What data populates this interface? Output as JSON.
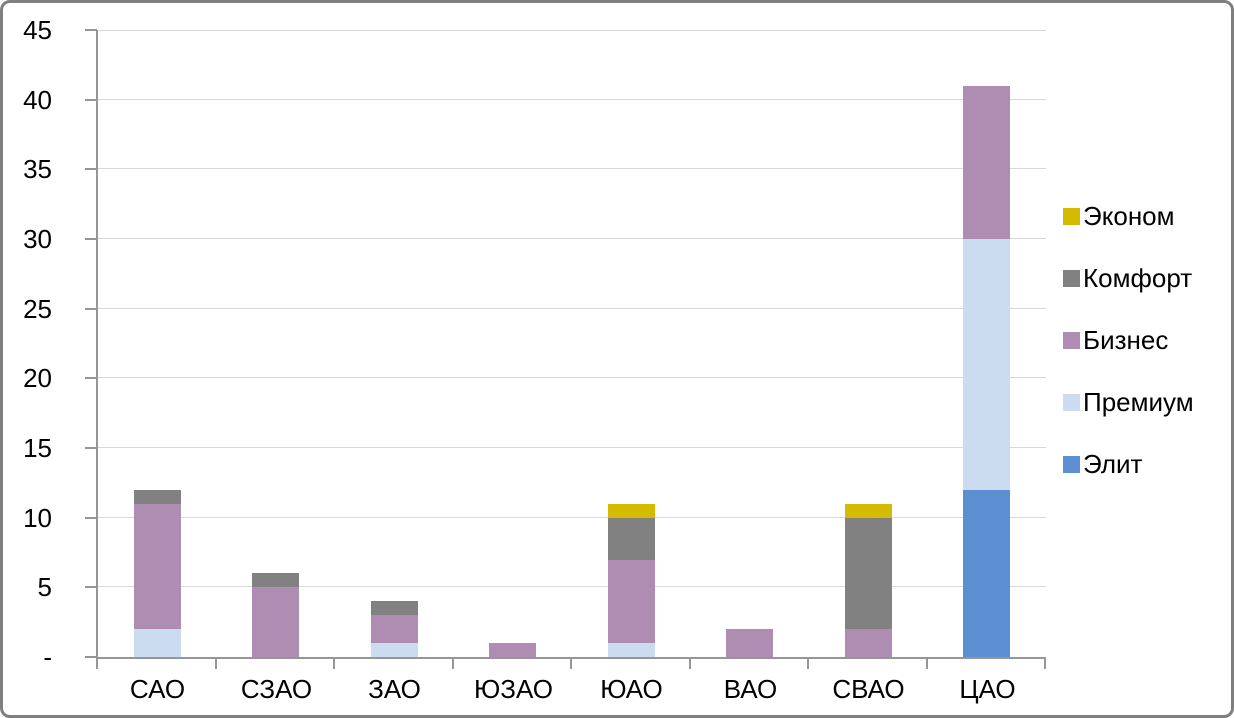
{
  "chart_data": {
    "type": "bar",
    "stacked": true,
    "title": "",
    "xlabel": "",
    "ylabel": "",
    "categories": [
      "САО",
      "СЗАО",
      "ЗАО",
      "ЮЗАО",
      "ЮАО",
      "ВАО",
      "СВАО",
      "ЦАО"
    ],
    "series": [
      {
        "name": "Элит",
        "color": "#5B8FD2",
        "values": [
          0,
          0,
          0,
          0,
          0,
          0,
          0,
          12
        ]
      },
      {
        "name": "Премиум",
        "color": "#CBDCF1",
        "values": [
          2,
          0,
          1,
          0,
          1,
          0,
          0,
          18
        ]
      },
      {
        "name": "Бизнес",
        "color": "#AF8CB2",
        "values": [
          9,
          5,
          2,
          1,
          6,
          2,
          2,
          11
        ]
      },
      {
        "name": "Комфорт",
        "color": "#818181",
        "values": [
          1,
          1,
          1,
          0,
          3,
          0,
          8,
          0
        ]
      },
      {
        "name": "Эконом",
        "color": "#D4BA00",
        "values": [
          0,
          0,
          0,
          0,
          1,
          0,
          1,
          0
        ]
      }
    ],
    "stack_order_note": "series listed bottom-to-top of stack",
    "y_axis": {
      "min": 0,
      "max": 45,
      "step": 5,
      "tick_labels": [
        "-",
        "5",
        "10",
        "15",
        "20",
        "25",
        "30",
        "35",
        "40",
        "45"
      ]
    },
    "grid": true,
    "legend": {
      "position": "right",
      "entries": [
        {
          "label": "Эконом",
          "color": "#D4BA00"
        },
        {
          "label": "Комфорт",
          "color": "#818181"
        },
        {
          "label": "Бизнес",
          "color": "#AF8CB2"
        },
        {
          "label": "Премиум",
          "color": "#CBDCF1"
        },
        {
          "label": "Элит",
          "color": "#5B8FD2"
        }
      ]
    }
  },
  "styles": {
    "axis_color": "#969696",
    "gridline_color": "#D9D9D9",
    "frame_border_color": "#7F7F7F",
    "text_color": "#000000"
  }
}
